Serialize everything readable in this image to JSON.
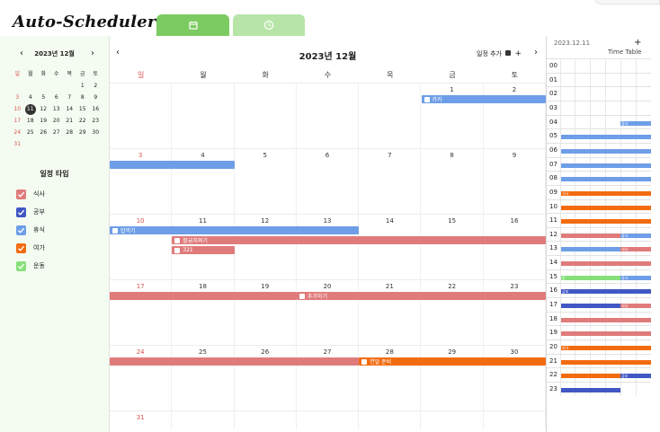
{
  "app": {
    "title": "Auto-Scheduler"
  },
  "tabs": [
    {
      "name": "calendar-icon"
    },
    {
      "name": "clock-icon"
    }
  ],
  "mini_calendar": {
    "title": "2023년 12월",
    "prev": "‹",
    "next": "›",
    "weekdays": [
      "일",
      "월",
      "화",
      "수",
      "목",
      "금",
      "토"
    ],
    "weeks": [
      [
        "",
        "",
        "",
        "",
        "",
        "1",
        "2"
      ],
      [
        "3",
        "4",
        "5",
        "6",
        "7",
        "8",
        "9"
      ],
      [
        "10",
        "11",
        "12",
        "13",
        "14",
        "15",
        "16"
      ],
      [
        "17",
        "18",
        "19",
        "20",
        "21",
        "22",
        "23"
      ],
      [
        "24",
        "25",
        "26",
        "27",
        "28",
        "29",
        "30"
      ],
      [
        "31",
        "",
        "",
        "",
        "",
        "",
        ""
      ]
    ],
    "today": "11"
  },
  "event_types": {
    "title": "일정 타입",
    "items": [
      {
        "label": "식사",
        "color": "#e07b7b"
      },
      {
        "label": "공부",
        "color": "#4057c4"
      },
      {
        "label": "휴식",
        "color": "#6e9ee8"
      },
      {
        "label": "여가",
        "color": "#f26b0f"
      },
      {
        "label": "운동",
        "color": "#86e07a"
      }
    ]
  },
  "month": {
    "title": "2023년 12월",
    "prev": "‹",
    "next": "›",
    "add_label": "일정 추가",
    "add_plus": "+",
    "weekdays": [
      "일",
      "월",
      "화",
      "수",
      "목",
      "금",
      "토"
    ],
    "weeks": [
      [
        "",
        "",
        "",
        "",
        "",
        "1",
        "2"
      ],
      [
        "3",
        "4",
        "5",
        "6",
        "7",
        "8",
        "9"
      ],
      [
        "10",
        "11",
        "12",
        "13",
        "14",
        "15",
        "16"
      ],
      [
        "17",
        "18",
        "19",
        "20",
        "21",
        "22",
        "23"
      ],
      [
        "24",
        "25",
        "26",
        "27",
        "28",
        "29",
        "30"
      ],
      [
        "31",
        "",
        "",
        "",
        "",
        "",
        ""
      ]
    ],
    "events": [
      {
        "label": "카카",
        "type": "휴식",
        "week": 0,
        "start": 5,
        "end": 7,
        "lane": 0
      },
      {
        "label": "",
        "type": "휴식",
        "week": 1,
        "start": 0,
        "end": 2,
        "lane": 0
      },
      {
        "label": "밥먹기",
        "type": "휴식",
        "week": 2,
        "start": 0,
        "end": 4,
        "lane": 0
      },
      {
        "label": "팔굽혀펴기",
        "type": "식사",
        "week": 2,
        "start": 1,
        "end": 7,
        "lane": 1
      },
      {
        "label": "321",
        "type": "식사",
        "week": 2,
        "start": 1,
        "end": 2,
        "lane": 2
      },
      {
        "label": "",
        "type": "식사",
        "week": 3,
        "start": 0,
        "end": 3,
        "lane": 0
      },
      {
        "label": "추가하기",
        "type": "식사",
        "week": 3,
        "start": 3,
        "end": 7,
        "lane": 0
      },
      {
        "label": "",
        "type": "식사",
        "week": 4,
        "start": 0,
        "end": 4,
        "lane": 0
      },
      {
        "label": "연말 준비",
        "type": "여가",
        "week": 4,
        "start": 4,
        "end": 7,
        "lane": 0
      }
    ]
  },
  "timetable": {
    "date": "2023.12.11",
    "plus": "+",
    "label": "Time Table",
    "hours": [
      "00",
      "01",
      "02",
      "03",
      "04",
      "05",
      "06",
      "07",
      "08",
      "09",
      "10",
      "11",
      "12",
      "13",
      "14",
      "15",
      "16",
      "17",
      "18",
      "19",
      "20",
      "21",
      "22",
      "23"
    ]
  }
}
